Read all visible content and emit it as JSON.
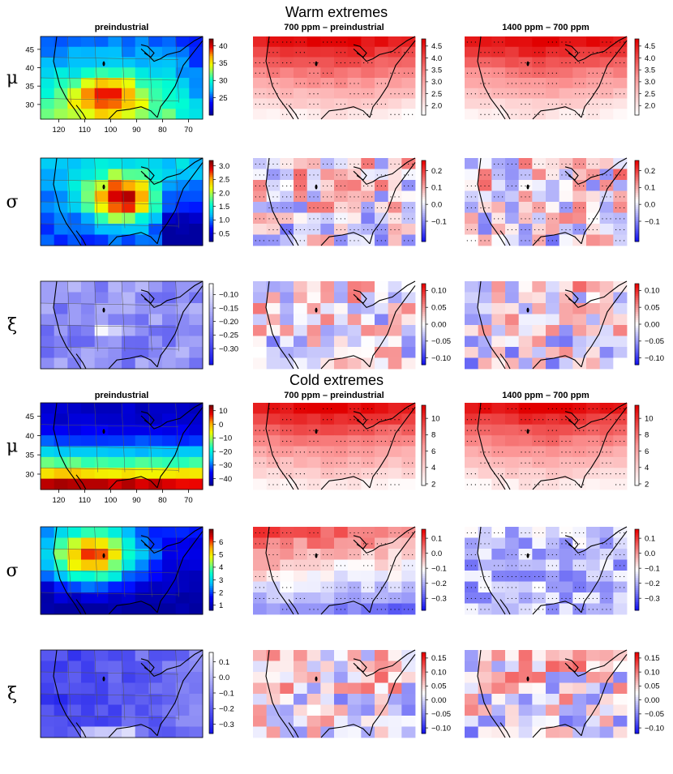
{
  "chart_data": {
    "type": "heatmap",
    "sections": [
      {
        "title": "Warm extremes",
        "columns": [
          "preindustrial",
          "700 ppm – preindustrial",
          "1400 ppm – 700 ppm"
        ],
        "rows": [
          {
            "label": "μ",
            "panels": [
              {
                "palette": "rainbow",
                "range": [
                  20,
                  42
                ],
                "colorbar_ticks": [
                  "25",
                  "30",
                  "35",
                  "40"
                ],
                "colorbar_values": [
                  25,
                  30,
                  35,
                  40
                ],
                "lat_ticks": [
                  "45",
                  "40",
                  "35",
                  "30"
                ],
                "lat_values": [
                  45,
                  40,
                  35,
                  30
                ],
                "lon_ticks": [
                  "120",
                  "110",
                  "100",
                  "90",
                  "80",
                  "70"
                ],
                "lon_values": [
                  120,
                  110,
                  100,
                  90,
                  80,
                  70
                ],
                "pattern": "warm_mu"
              },
              {
                "palette": "whitered",
                "range": [
                  1.6,
                  4.8
                ],
                "colorbar_ticks": [
                  "2.0",
                  "2.5",
                  "3.0",
                  "3.5",
                  "4.0",
                  "4.5"
                ],
                "colorbar_values": [
                  2.0,
                  2.5,
                  3.0,
                  3.5,
                  4.0,
                  4.5
                ],
                "pattern": "increase_north",
                "stippled": true
              },
              {
                "palette": "whitered",
                "range": [
                  1.6,
                  4.8
                ],
                "colorbar_ticks": [
                  "2.0",
                  "2.5",
                  "3.0",
                  "3.5",
                  "4.0",
                  "4.5"
                ],
                "colorbar_values": [
                  2.0,
                  2.5,
                  3.0,
                  3.5,
                  4.0,
                  4.5
                ],
                "pattern": "increase_north",
                "stippled": true
              }
            ]
          },
          {
            "label": "σ",
            "panels": [
              {
                "palette": "rainbow",
                "range": [
                  0.2,
                  3.2
                ],
                "colorbar_ticks": [
                  "0.5",
                  "1.0",
                  "1.5",
                  "2.0",
                  "2.5",
                  "3.0"
                ],
                "colorbar_values": [
                  0.5,
                  1.0,
                  1.5,
                  2.0,
                  2.5,
                  3.0
                ],
                "pattern": "warm_sigma"
              },
              {
                "palette": "bluered",
                "range": [
                  -0.22,
                  0.26
                ],
                "colorbar_ticks": [
                  "−0.1",
                  "0.0",
                  "0.1",
                  "0.2"
                ],
                "colorbar_values": [
                  -0.1,
                  0.0,
                  0.1,
                  0.2
                ],
                "pattern": "mixed",
                "stippled": true
              },
              {
                "palette": "bluered",
                "range": [
                  -0.22,
                  0.26
                ],
                "colorbar_ticks": [
                  "−0.1",
                  "0.0",
                  "0.1",
                  "0.2"
                ],
                "colorbar_values": [
                  -0.1,
                  0.0,
                  0.1,
                  0.2
                ],
                "pattern": "mixed",
                "stippled": true
              }
            ]
          },
          {
            "label": "ξ",
            "panels": [
              {
                "palette": "bluewhite",
                "range": [
                  -0.36,
                  -0.06
                ],
                "colorbar_ticks": [
                  "−0.10",
                  "−0.15",
                  "−0.20",
                  "−0.25",
                  "−0.30"
                ],
                "colorbar_values": [
                  -0.1,
                  -0.15,
                  -0.2,
                  -0.25,
                  -0.3
                ],
                "pattern": "xi_warm"
              },
              {
                "palette": "bluered",
                "range": [
                  -0.12,
                  0.12
                ],
                "colorbar_ticks": [
                  "−0.10",
                  "−0.05",
                  "0.00",
                  "0.05",
                  "0.10"
                ],
                "colorbar_values": [
                  -0.1,
                  -0.05,
                  0.0,
                  0.05,
                  0.1
                ],
                "pattern": "mixed"
              },
              {
                "palette": "bluered",
                "range": [
                  -0.12,
                  0.12
                ],
                "colorbar_ticks": [
                  "−0.10",
                  "−0.05",
                  "0.00",
                  "0.05",
                  "0.10"
                ],
                "colorbar_values": [
                  -0.1,
                  -0.05,
                  0.0,
                  0.05,
                  0.1
                ],
                "pattern": "mixed"
              }
            ]
          }
        ]
      },
      {
        "title": "Cold extremes",
        "columns": [
          "preindustrial",
          "700 ppm – preindustrial",
          "1400 ppm – 700 ppm"
        ],
        "rows": [
          {
            "label": "μ",
            "panels": [
              {
                "palette": "rainbow",
                "range": [
                  -45,
                  14
                ],
                "colorbar_ticks": [
                  "10",
                  "0",
                  "−10",
                  "−20",
                  "−30",
                  "−40"
                ],
                "colorbar_values": [
                  10,
                  0,
                  -10,
                  -20,
                  -30,
                  -40
                ],
                "lat_ticks": [
                  "45",
                  "40",
                  "35",
                  "30"
                ],
                "lat_values": [
                  45,
                  40,
                  35,
                  30
                ],
                "lon_ticks": [
                  "120",
                  "110",
                  "100",
                  "90",
                  "80",
                  "70"
                ],
                "lon_values": [
                  120,
                  110,
                  100,
                  90,
                  80,
                  70
                ],
                "pattern": "cold_mu"
              },
              {
                "palette": "whitered",
                "range": [
                  1.8,
                  11.6
                ],
                "colorbar_ticks": [
                  "10",
                  "8",
                  "6",
                  "4",
                  "2"
                ],
                "colorbar_values": [
                  10,
                  8,
                  6,
                  4,
                  2
                ],
                "pattern": "increase_north",
                "stippled": true
              },
              {
                "palette": "whitered",
                "range": [
                  1.8,
                  11.6
                ],
                "colorbar_ticks": [
                  "10",
                  "8",
                  "6",
                  "4",
                  "2"
                ],
                "colorbar_values": [
                  10,
                  8,
                  6,
                  4,
                  2
                ],
                "pattern": "increase_north",
                "stippled": true
              }
            ]
          },
          {
            "label": "σ",
            "panels": [
              {
                "palette": "rainbow",
                "range": [
                  0.6,
                  7.0
                ],
                "colorbar_ticks": [
                  "6",
                  "5",
                  "4",
                  "3",
                  "2",
                  "1"
                ],
                "colorbar_values": [
                  6,
                  5,
                  4,
                  3,
                  2,
                  1
                ],
                "pattern": "cold_sigma"
              },
              {
                "palette": "bluered",
                "range": [
                  -0.38,
                  0.16
                ],
                "colorbar_ticks": [
                  "0.1",
                  "0.0",
                  "−0.1",
                  "−0.2",
                  "−0.3"
                ],
                "colorbar_values": [
                  0.1,
                  0.0,
                  -0.1,
                  -0.2,
                  -0.3
                ],
                "pattern": "north_pos_south_neg",
                "stippled": true
              },
              {
                "palette": "bluered",
                "range": [
                  -0.38,
                  0.16
                ],
                "colorbar_ticks": [
                  "0.1",
                  "0.0",
                  "−0.1",
                  "−0.2",
                  "−0.3"
                ],
                "colorbar_values": [
                  0.1,
                  0.0,
                  -0.1,
                  -0.2,
                  -0.3
                ],
                "pattern": "mostly_negative",
                "stippled": true
              }
            ]
          },
          {
            "label": "ξ",
            "panels": [
              {
                "palette": "bluewhite",
                "range": [
                  -0.36,
                  0.16
                ],
                "colorbar_ticks": [
                  "0.1",
                  "0.0",
                  "−0.1",
                  "−0.2",
                  "−0.3"
                ],
                "colorbar_values": [
                  0.1,
                  0.0,
                  -0.1,
                  -0.2,
                  -0.3
                ],
                "pattern": "xi_cold"
              },
              {
                "palette": "bluered",
                "range": [
                  -0.12,
                  0.17
                ],
                "colorbar_ticks": [
                  "0.15",
                  "0.10",
                  "0.05",
                  "0.00",
                  "−0.05",
                  "−0.10"
                ],
                "colorbar_values": [
                  0.15,
                  0.1,
                  0.05,
                  0.0,
                  -0.05,
                  -0.1
                ],
                "pattern": "mixed"
              },
              {
                "palette": "bluered",
                "range": [
                  -0.12,
                  0.17
                ],
                "colorbar_ticks": [
                  "0.15",
                  "0.10",
                  "0.05",
                  "0.00",
                  "−0.05",
                  "−0.10"
                ],
                "colorbar_values": [
                  0.15,
                  0.1,
                  0.05,
                  0.0,
                  -0.05,
                  -0.1
                ],
                "pattern": "mixed"
              }
            ]
          }
        ]
      }
    ]
  }
}
